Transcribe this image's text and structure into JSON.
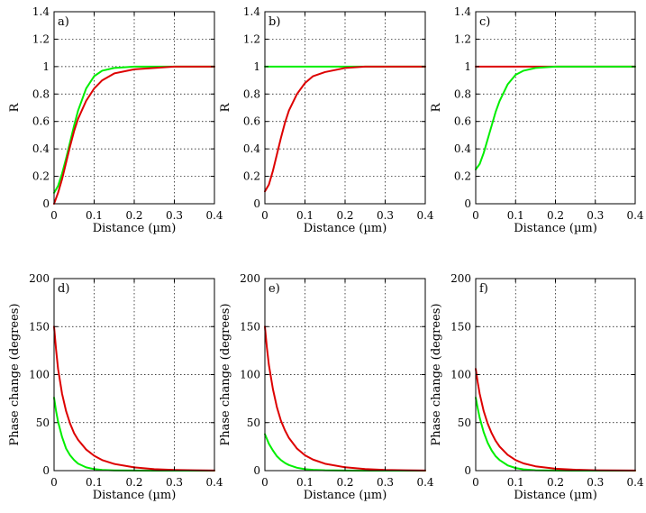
{
  "colors": {
    "green": "#00ee00",
    "red": "#dd0000"
  },
  "chart_data": [
    {
      "type": "line",
      "panel_label": "a)",
      "xlabel": "Distance (µm)",
      "ylabel": "R",
      "xlim": [
        0,
        0.4
      ],
      "ylim": [
        0,
        1.4
      ],
      "xticks": [
        0,
        0.1,
        0.2,
        0.3,
        0.4
      ],
      "yticks": [
        0,
        0.2,
        0.4,
        0.6,
        0.8,
        1,
        1.2,
        1.4
      ],
      "grid": true,
      "x": [
        0,
        0.01,
        0.02,
        0.03,
        0.04,
        0.05,
        0.06,
        0.08,
        0.1,
        0.12,
        0.15,
        0.2,
        0.25,
        0.3,
        0.35,
        0.4
      ],
      "series": [
        {
          "color": "green",
          "values": [
            0.08,
            0.13,
            0.22,
            0.33,
            0.45,
            0.57,
            0.68,
            0.84,
            0.93,
            0.97,
            0.99,
            1.0,
            1.0,
            1.0,
            1.0,
            1.0
          ]
        },
        {
          "color": "red",
          "values": [
            0.0,
            0.08,
            0.18,
            0.3,
            0.42,
            0.53,
            0.62,
            0.75,
            0.84,
            0.9,
            0.95,
            0.98,
            0.99,
            1.0,
            1.0,
            1.0
          ]
        }
      ]
    },
    {
      "type": "line",
      "panel_label": "b)",
      "xlabel": "Distance (µm)",
      "ylabel": "R",
      "xlim": [
        0,
        0.4
      ],
      "ylim": [
        0,
        1.4
      ],
      "xticks": [
        0,
        0.1,
        0.2,
        0.3,
        0.4
      ],
      "yticks": [
        0,
        0.2,
        0.4,
        0.6,
        0.8,
        1,
        1.2,
        1.4
      ],
      "grid": true,
      "x": [
        0,
        0.01,
        0.02,
        0.03,
        0.04,
        0.05,
        0.06,
        0.08,
        0.1,
        0.12,
        0.15,
        0.2,
        0.25,
        0.3,
        0.35,
        0.4
      ],
      "series": [
        {
          "color": "green",
          "values": [
            1.0,
            1.0,
            1.0,
            1.0,
            1.0,
            1.0,
            1.0,
            1.0,
            1.0,
            1.0,
            1.0,
            1.0,
            1.0,
            1.0,
            1.0,
            1.0
          ]
        },
        {
          "color": "red",
          "values": [
            0.09,
            0.14,
            0.24,
            0.36,
            0.48,
            0.59,
            0.68,
            0.8,
            0.88,
            0.93,
            0.96,
            0.99,
            1.0,
            1.0,
            1.0,
            1.0
          ]
        }
      ]
    },
    {
      "type": "line",
      "panel_label": "c)",
      "xlabel": "Distance (µm)",
      "ylabel": "R",
      "xlim": [
        0,
        0.4
      ],
      "ylim": [
        0,
        1.4
      ],
      "xticks": [
        0,
        0.1,
        0.2,
        0.3,
        0.4
      ],
      "yticks": [
        0,
        0.2,
        0.4,
        0.6,
        0.8,
        1,
        1.2,
        1.4
      ],
      "grid": true,
      "x": [
        0,
        0.01,
        0.02,
        0.03,
        0.04,
        0.05,
        0.06,
        0.08,
        0.1,
        0.12,
        0.15,
        0.2,
        0.25,
        0.3,
        0.35,
        0.4
      ],
      "series": [
        {
          "color": "red",
          "values": [
            1.0,
            1.0,
            1.0,
            1.0,
            1.0,
            1.0,
            1.0,
            1.0,
            1.0,
            1.0,
            1.0,
            1.0,
            1.0,
            1.0,
            1.0,
            1.0
          ]
        },
        {
          "color": "green",
          "values": [
            0.25,
            0.29,
            0.37,
            0.47,
            0.57,
            0.67,
            0.75,
            0.87,
            0.94,
            0.97,
            0.99,
            1.0,
            1.0,
            1.0,
            1.0,
            1.0
          ]
        }
      ]
    },
    {
      "type": "line",
      "panel_label": "d)",
      "xlabel": "Distance (µm)",
      "ylabel": "Phase change (degrees)",
      "xlim": [
        0,
        0.4
      ],
      "ylim": [
        0,
        200
      ],
      "xticks": [
        0,
        0.1,
        0.2,
        0.3,
        0.4
      ],
      "yticks": [
        0,
        50,
        100,
        150,
        200
      ],
      "grid": true,
      "x": [
        0,
        0.005,
        0.01,
        0.02,
        0.03,
        0.04,
        0.05,
        0.06,
        0.08,
        0.1,
        0.12,
        0.15,
        0.2,
        0.25,
        0.3,
        0.35,
        0.4
      ],
      "series": [
        {
          "color": "green",
          "values": [
            76,
            62,
            51,
            35,
            23,
            16,
            11,
            7.3,
            3.4,
            1.6,
            0.7,
            0.2,
            0.1,
            0,
            0,
            0,
            0
          ]
        },
        {
          "color": "red",
          "values": [
            150,
            126,
            106,
            80,
            62,
            49,
            39,
            32,
            22,
            15.5,
            11,
            7,
            3.4,
            1.5,
            0.7,
            0.3,
            0.1
          ]
        }
      ]
    },
    {
      "type": "line",
      "panel_label": "e)",
      "xlabel": "Distance (µm)",
      "ylabel": "Phase change (degrees)",
      "xlim": [
        0,
        0.4
      ],
      "ylim": [
        0,
        200
      ],
      "xticks": [
        0,
        0.1,
        0.2,
        0.3,
        0.4
      ],
      "yticks": [
        0,
        50,
        100,
        150,
        200
      ],
      "grid": true,
      "x": [
        0,
        0.005,
        0.01,
        0.02,
        0.03,
        0.04,
        0.05,
        0.06,
        0.08,
        0.1,
        0.12,
        0.15,
        0.2,
        0.25,
        0.3,
        0.35,
        0.4
      ],
      "series": [
        {
          "color": "green",
          "values": [
            38,
            33,
            28,
            21,
            15,
            11,
            8,
            5.8,
            3,
            1.5,
            0.8,
            0.3,
            0.1,
            0,
            0,
            0,
            0
          ]
        },
        {
          "color": "red",
          "values": [
            150,
            128,
            110,
            85,
            66,
            52,
            42,
            34,
            23,
            16,
            11.5,
            7.2,
            3.5,
            1.6,
            0.7,
            0.3,
            0.1
          ]
        }
      ]
    },
    {
      "type": "line",
      "panel_label": "f)",
      "xlabel": "Distance (µm)",
      "ylabel": "Phase change (degrees)",
      "xlim": [
        0,
        0.4
      ],
      "ylim": [
        0,
        200
      ],
      "xticks": [
        0,
        0.1,
        0.2,
        0.3,
        0.4
      ],
      "yticks": [
        0,
        50,
        100,
        150,
        200
      ],
      "grid": true,
      "x": [
        0,
        0.005,
        0.01,
        0.02,
        0.03,
        0.04,
        0.05,
        0.06,
        0.08,
        0.1,
        0.12,
        0.15,
        0.2,
        0.25,
        0.3,
        0.35,
        0.4
      ],
      "series": [
        {
          "color": "green",
          "values": [
            76,
            65,
            55,
            40,
            29,
            21,
            15,
            11,
            5.5,
            2.7,
            1.3,
            0.4,
            0.1,
            0,
            0,
            0,
            0
          ]
        },
        {
          "color": "red",
          "values": [
            106,
            92,
            80,
            62,
            49,
            39,
            31,
            25,
            16.5,
            11,
            7.5,
            4.5,
            2,
            0.9,
            0.4,
            0.2,
            0.1
          ]
        }
      ]
    }
  ]
}
